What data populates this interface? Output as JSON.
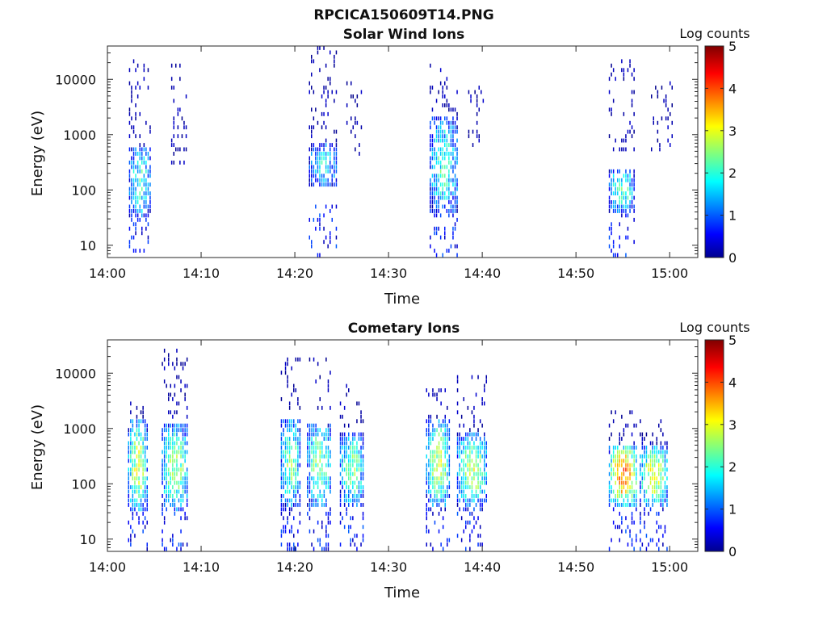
{
  "figure_title": "RPCICA150609T14.PNG",
  "colorbar": {
    "label": "Log counts",
    "ticks": [
      "0",
      "1",
      "2",
      "3",
      "4",
      "5"
    ],
    "range": [
      0,
      5
    ],
    "colormap": "jet"
  },
  "chart_data": [
    {
      "type": "heatmap",
      "title": "Solar Wind Ions",
      "xlabel": "Time",
      "ylabel": "Energy (eV)",
      "x_ticks": [
        "14:00",
        "14:10",
        "14:20",
        "14:30",
        "14:40",
        "14:50",
        "15:00"
      ],
      "y_ticks": [
        "10",
        "100",
        "1000",
        "10000"
      ],
      "xlim": [
        "14:00",
        "15:03"
      ],
      "ylim": [
        6,
        40000
      ],
      "yscale": "log",
      "grid": false,
      "bursts": [
        {
          "time_min": 2.3,
          "time_max": 4.6,
          "core_energy": [
            30,
            600
          ],
          "core_log_counts": 2.0,
          "tail_energy": [
            6,
            30
          ],
          "scatter_energy": [
            600,
            25000
          ],
          "scatter_time_max": 5.5
        },
        {
          "time_min": 6.8,
          "time_max": 8.5,
          "core_energy": null,
          "core_log_counts": 0.3,
          "tail_energy": null,
          "scatter_energy": [
            300,
            18000
          ],
          "scatter_time_max": 8.5
        },
        {
          "time_min": 21.5,
          "time_max": 24.5,
          "core_energy": [
            120,
            700
          ],
          "core_log_counts": 1.7,
          "tail_energy": [
            6,
            50
          ],
          "scatter_energy": [
            600,
            40000
          ],
          "scatter_time_max": 24.5
        },
        {
          "time_min": 25.5,
          "time_max": 27.2,
          "core_energy": null,
          "core_log_counts": 0.3,
          "tail_energy": null,
          "scatter_energy": [
            400,
            9000
          ],
          "scatter_time_max": 27.2
        },
        {
          "time_min": 34.4,
          "time_max": 37.3,
          "core_energy": [
            40,
            2000
          ],
          "core_log_counts": 2.1,
          "tail_energy": [
            6,
            40
          ],
          "scatter_energy": [
            1000,
            20000
          ],
          "scatter_time_max": 37.3
        },
        {
          "time_min": 38.5,
          "time_max": 40.2,
          "core_energy": null,
          "core_log_counts": 0.3,
          "tail_energy": null,
          "scatter_energy": [
            600,
            8000
          ],
          "scatter_time_max": 40.2
        },
        {
          "time_min": 53.5,
          "time_max": 56.2,
          "core_energy": [
            40,
            250
          ],
          "core_log_counts": 2.2,
          "tail_energy": [
            6,
            40
          ],
          "scatter_energy": [
            500,
            22000
          ],
          "scatter_time_max": 56.2
        },
        {
          "time_min": 58.0,
          "time_max": 60.3,
          "core_energy": null,
          "core_log_counts": 0.3,
          "tail_energy": null,
          "scatter_energy": [
            500,
            12000
          ],
          "scatter_time_max": 60.3
        }
      ]
    },
    {
      "type": "heatmap",
      "title": "Cometary Ions",
      "xlabel": "Time",
      "ylabel": "Energy (eV)",
      "x_ticks": [
        "14:00",
        "14:10",
        "14:20",
        "14:30",
        "14:40",
        "14:50",
        "15:00"
      ],
      "y_ticks": [
        "10",
        "100",
        "1000",
        "10000"
      ],
      "xlim": [
        "14:00",
        "15:03"
      ],
      "ylim": [
        6,
        40000
      ],
      "yscale": "log",
      "grid": false,
      "bursts": [
        {
          "time_min": 2.2,
          "time_max": 4.2,
          "core_energy": [
            30,
            1500
          ],
          "core_log_counts": 2.8,
          "tail_energy": [
            6,
            30
          ],
          "scatter_energy": [
            1500,
            3000
          ],
          "scatter_time_max": 4.2
        },
        {
          "time_min": 5.8,
          "time_max": 8.6,
          "core_energy": [
            30,
            1200
          ],
          "core_log_counts": 2.6,
          "tail_energy": [
            6,
            30
          ],
          "scatter_energy": [
            1500,
            30000
          ],
          "scatter_time_max": 8.6
        },
        {
          "time_min": 18.5,
          "time_max": 20.5,
          "core_energy": [
            40,
            1500
          ],
          "core_log_counts": 2.4,
          "tail_energy": [
            6,
            40
          ],
          "scatter_energy": [
            2000,
            18000
          ],
          "scatter_time_max": 20.5
        },
        {
          "time_min": 21.3,
          "time_max": 23.8,
          "core_energy": [
            40,
            1200
          ],
          "core_log_counts": 2.5,
          "tail_energy": [
            6,
            40
          ],
          "scatter_energy": [
            2000,
            22000
          ],
          "scatter_time_max": 23.8
        },
        {
          "time_min": 24.8,
          "time_max": 27.3,
          "core_energy": [
            40,
            900
          ],
          "core_log_counts": 2.4,
          "tail_energy": [
            6,
            40
          ],
          "scatter_energy": [
            1000,
            6000
          ],
          "scatter_time_max": 27.3
        },
        {
          "time_min": 34.0,
          "time_max": 36.5,
          "core_energy": [
            40,
            1500
          ],
          "core_log_counts": 2.8,
          "tail_energy": [
            6,
            40
          ],
          "scatter_energy": [
            1500,
            5000
          ],
          "scatter_time_max": 36.5
        },
        {
          "time_min": 37.3,
          "time_max": 40.5,
          "core_energy": [
            40,
            800
          ],
          "core_log_counts": 2.7,
          "tail_energy": [
            6,
            40
          ],
          "scatter_energy": [
            600,
            9000
          ],
          "scatter_time_max": 40.5
        },
        {
          "time_min": 53.5,
          "time_max": 56.5,
          "core_energy": [
            40,
            500
          ],
          "core_log_counts": 3.8,
          "tail_energy": [
            6,
            40
          ],
          "scatter_energy": [
            500,
            2000
          ],
          "scatter_time_max": 56.5
        },
        {
          "time_min": 56.8,
          "time_max": 59.8,
          "core_energy": [
            40,
            500
          ],
          "core_log_counts": 2.9,
          "tail_energy": [
            6,
            40
          ],
          "scatter_energy": [
            500,
            1500
          ],
          "scatter_time_max": 59.8
        }
      ]
    }
  ]
}
